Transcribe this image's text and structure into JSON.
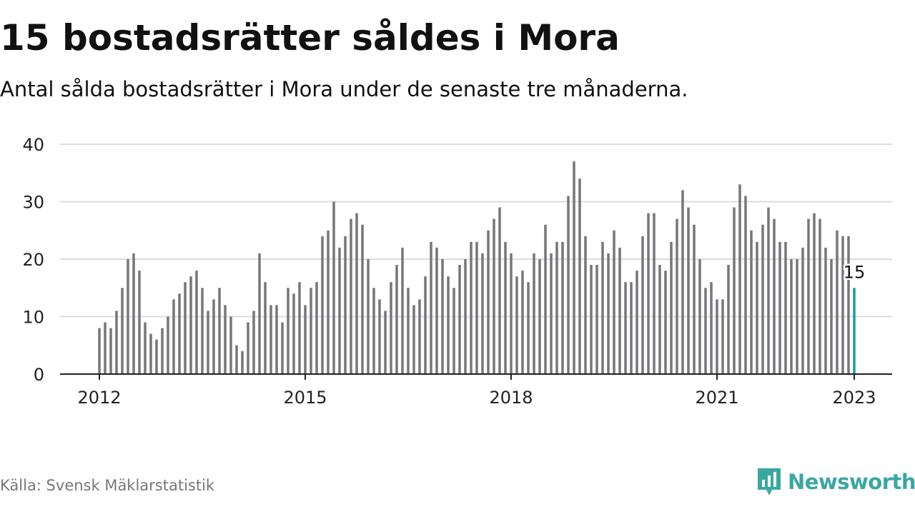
{
  "header": {
    "title": "15 bostadsrätter såldes i Mora",
    "subtitle": "Antal sålda bostadsrätter i Mora under de senaste tre månaderna."
  },
  "footer": {
    "source": "Källa: Svensk Mäklarstatistik",
    "brand": "Newsworthy",
    "brand_icon": "bar-chart-speech-bubble-icon"
  },
  "colors": {
    "bar": "#76767b",
    "highlight": "#1a9e9a",
    "grid": "#dcdcdc",
    "axis": "#222222",
    "brand": "#3aa7a1"
  },
  "chart_data": {
    "type": "bar",
    "start": "2012-01",
    "values": [
      8,
      9,
      8,
      11,
      15,
      20,
      21,
      18,
      9,
      7,
      6,
      8,
      10,
      13,
      14,
      16,
      17,
      18,
      15,
      11,
      13,
      15,
      12,
      10,
      5,
      4,
      9,
      11,
      21,
      16,
      12,
      12,
      9,
      15,
      14,
      16,
      12,
      15,
      16,
      24,
      25,
      30,
      22,
      24,
      27,
      28,
      26,
      20,
      15,
      13,
      11,
      16,
      19,
      22,
      15,
      12,
      13,
      17,
      23,
      22,
      20,
      17,
      15,
      19,
      20,
      23,
      23,
      21,
      25,
      27,
      29,
      23,
      21,
      17,
      18,
      16,
      21,
      20,
      26,
      21,
      23,
      23,
      31,
      37,
      34,
      24,
      19,
      19,
      23,
      21,
      25,
      22,
      16,
      16,
      18,
      24,
      28,
      28,
      19,
      18,
      23,
      27,
      32,
      29,
      26,
      20,
      15,
      16,
      13,
      13,
      19,
      29,
      33,
      31,
      25,
      23,
      26,
      29,
      27,
      23,
      23,
      20,
      20,
      22,
      27,
      28,
      27,
      22,
      20,
      25,
      24,
      24,
      15
    ],
    "highlight_label": "15",
    "x_ticks": [
      "2012",
      "2015",
      "2018",
      "2021",
      "2023"
    ],
    "y_ticks": [
      "0",
      "10",
      "20",
      "30",
      "40"
    ],
    "ylim": [
      0,
      40
    ],
    "xlabel": "",
    "ylabel": "",
    "grid": true
  }
}
